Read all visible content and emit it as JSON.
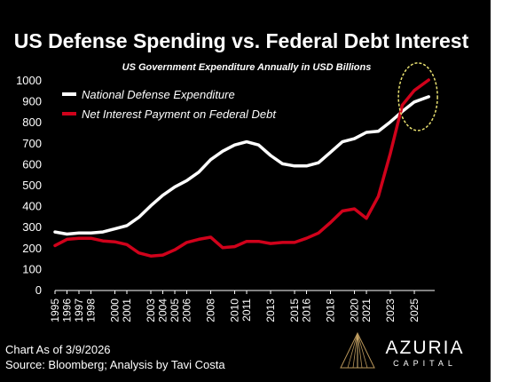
{
  "chart_data": {
    "type": "line",
    "title": "US Defense Spending vs. Federal Debt Interest",
    "subtitle": "US Government Expenditure Annually in USD Billions",
    "xlabel": "",
    "ylabel": "",
    "ylim": [
      0,
      1000
    ],
    "yticks": [
      0,
      100,
      200,
      300,
      400,
      500,
      600,
      700,
      800,
      900,
      1000
    ],
    "xlim": [
      1995,
      2026.7
    ],
    "xticks": [
      "1995",
      "1996",
      "1997",
      "1998",
      "2000",
      "2001",
      "2003",
      "2004",
      "2005",
      "2006",
      "2008",
      "2010",
      "2011",
      "2013",
      "2015",
      "2016",
      "2018",
      "2020",
      "2021",
      "2023",
      "2025"
    ],
    "grid": false,
    "legend_position": "top-left",
    "series": [
      {
        "name": "National Defense Expenditure",
        "color": "#ffffff",
        "x": [
          1995,
          1996,
          1997,
          1998,
          1999,
          2000,
          2001,
          2002,
          2003,
          2004,
          2005,
          2006,
          2007,
          2008,
          2009,
          2010,
          2011,
          2012,
          2013,
          2014,
          2015,
          2016,
          2017,
          2018,
          2019,
          2020,
          2021,
          2022,
          2023,
          2024,
          2025,
          2026.2
        ],
        "y": [
          275,
          265,
          270,
          270,
          275,
          290,
          305,
          345,
          400,
          450,
          490,
          520,
          560,
          620,
          660,
          690,
          705,
          690,
          640,
          600,
          590,
          590,
          605,
          655,
          705,
          720,
          750,
          755,
          800,
          850,
          895,
          920
        ]
      },
      {
        "name": "Net Interest Payment on Federal Debt",
        "color": "#d0021b",
        "x": [
          1995,
          1996,
          1997,
          1998,
          1999,
          2000,
          2001,
          2002,
          2003,
          2004,
          2005,
          2006,
          2007,
          2008,
          2009,
          2010,
          2011,
          2012,
          2013,
          2014,
          2015,
          2016,
          2017,
          2018,
          2019,
          2020,
          2021,
          2022,
          2023,
          2024,
          2025,
          2026.2
        ],
        "y": [
          210,
          240,
          245,
          245,
          232,
          228,
          215,
          175,
          160,
          165,
          190,
          225,
          240,
          250,
          200,
          205,
          230,
          230,
          220,
          225,
          225,
          245,
          270,
          320,
          375,
          385,
          340,
          445,
          650,
          880,
          950,
          1000
        ]
      }
    ],
    "annotations": [
      {
        "type": "ellipse",
        "color": "#e8e070",
        "x": 2025.3,
        "y": 920
      }
    ]
  },
  "footer": {
    "as_of": "Chart As of 3/9/2026",
    "source": "Source: Bloomberg; Analysis by Tavi Costa"
  },
  "logo": {
    "name": "AZURIA",
    "tagline": "CAPITAL"
  }
}
